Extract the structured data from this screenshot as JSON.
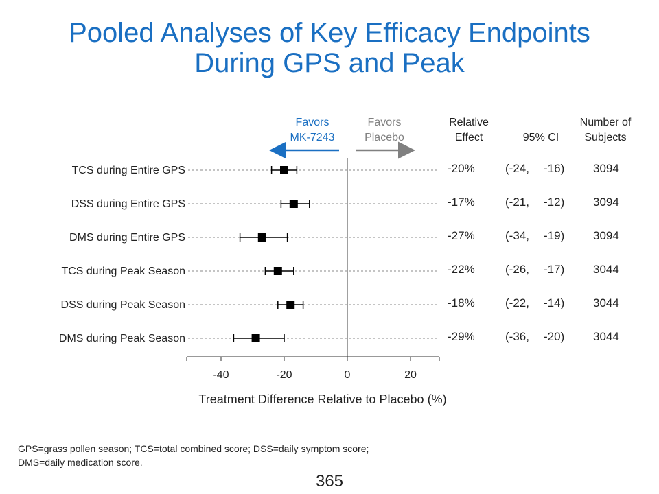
{
  "title_line1": "Pooled Analyses of Key Efficacy Endpoints",
  "title_line2": "During GPS and Peak",
  "headers": {
    "favors_mk_line1": "Favors",
    "favors_mk_line2": "MK-7243",
    "favors_placebo_line1": "Favors",
    "favors_placebo_line2": "Placebo",
    "relative_effect_line1": "Relative",
    "relative_effect_line2": "Effect",
    "ci": "95% CI",
    "subjects_line1": "Number of",
    "subjects_line2": "Subjects"
  },
  "colors": {
    "title": "#1a6fc2",
    "favors_mk": "#1a6fc2",
    "favors_placebo": "#808080"
  },
  "rows": [
    {
      "label": "TCS during Entire GPS",
      "effect": "-20%",
      "ci_low": "(-24,",
      "ci_high": "-16)",
      "n": "3094"
    },
    {
      "label": "DSS during Entire GPS",
      "effect": "-17%",
      "ci_low": "(-21,",
      "ci_high": "-12)",
      "n": "3094"
    },
    {
      "label": "DMS during Entire GPS",
      "effect": "-27%",
      "ci_low": "(-34,",
      "ci_high": "-19)",
      "n": "3094"
    },
    {
      "label": "TCS during Peak Season",
      "effect": "-22%",
      "ci_low": "(-26,",
      "ci_high": "-17)",
      "n": "3044"
    },
    {
      "label": "DSS during Peak Season",
      "effect": "-18%",
      "ci_low": "(-22,",
      "ci_high": "-14)",
      "n": "3044"
    },
    {
      "label": "DMS during Peak Season",
      "effect": "-29%",
      "ci_low": "(-36,",
      "ci_high": "-20)",
      "n": "3044"
    }
  ],
  "chart_data": {
    "type": "scatter",
    "subtype": "forest-plot",
    "xlabel": "Treatment Difference Relative to Placebo (%)",
    "xlim": [
      -50,
      30
    ],
    "xticks": [
      -40,
      -20,
      0,
      20
    ],
    "reference_line": 0,
    "grid": false,
    "series": [
      {
        "points": [
          {
            "category": "TCS during Entire GPS",
            "estimate": -20,
            "low": -24,
            "high": -16
          },
          {
            "category": "DSS during Entire GPS",
            "estimate": -17,
            "low": -21,
            "high": -12
          },
          {
            "category": "DMS during Entire GPS",
            "estimate": -27,
            "low": -34,
            "high": -19
          },
          {
            "category": "TCS during Peak Season",
            "estimate": -22,
            "low": -26,
            "high": -17
          },
          {
            "category": "DSS during Peak Season",
            "estimate": -18,
            "low": -22,
            "high": -14
          },
          {
            "category": "DMS during Peak Season",
            "estimate": -29,
            "low": -36,
            "high": -20
          }
        ]
      }
    ]
  },
  "footnote_line1": "GPS=grass pollen season; TCS=total combined score; DSS=daily symptom score;",
  "footnote_line2": "DMS=daily medication score.",
  "page_number": "365"
}
